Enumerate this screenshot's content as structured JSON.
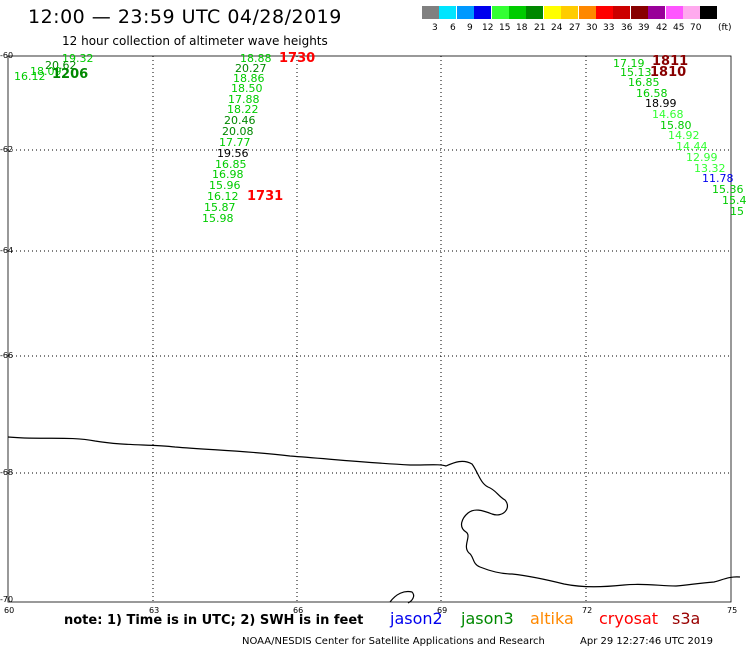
{
  "header": {
    "title": "12:00 — 23:59 UTC 04/28/2019",
    "subtitle": "12 hour collection of altimeter wave heights"
  },
  "legend": {
    "unit": "(ft)",
    "steps": [
      {
        "label": "3",
        "color": "#808080"
      },
      {
        "label": "6",
        "color": "#00e5ff"
      },
      {
        "label": "9",
        "color": "#0099ff"
      },
      {
        "label": "12",
        "color": "#0000ee"
      },
      {
        "label": "15",
        "color": "#33ff33"
      },
      {
        "label": "18",
        "color": "#00cc00"
      },
      {
        "label": "21",
        "color": "#008800"
      },
      {
        "label": "24",
        "color": "#ffff00"
      },
      {
        "label": "27",
        "color": "#ffcc00"
      },
      {
        "label": "30",
        "color": "#ff8800"
      },
      {
        "label": "33",
        "color": "#ff0000"
      },
      {
        "label": "36",
        "color": "#cc0000"
      },
      {
        "label": "39",
        "color": "#880000"
      },
      {
        "label": "42",
        "color": "#990099"
      },
      {
        "label": "45",
        "color": "#ff55ff"
      },
      {
        "label": "70",
        "color": "#ffaaee"
      },
      {
        "label": "",
        "color": "#000000"
      }
    ]
  },
  "axes": {
    "lat_ticks": [
      "-60",
      "-62",
      "-64",
      "-66",
      "-68",
      "-70"
    ],
    "lon_ticks": [
      "60",
      "63",
      "66",
      "69",
      "72",
      "75"
    ]
  },
  "passes": [
    {
      "label": "1206",
      "color": "#008800"
    },
    {
      "label": "1730",
      "color": "#ff0000"
    },
    {
      "label": "1731",
      "color": "#ff0000"
    },
    {
      "label": "1811",
      "color": "#880000"
    },
    {
      "label": "1810",
      "color": "#880000"
    }
  ],
  "tracks": {
    "track_a": [
      {
        "v": "19.32",
        "color": "#00cc00"
      },
      {
        "v": "20.62",
        "color": "#008800"
      },
      {
        "v": "18.09",
        "color": "#00cc00"
      },
      {
        "v": "16.12",
        "color": "#00cc00"
      }
    ],
    "track_b": [
      {
        "v": "18.88",
        "color": "#00cc00"
      },
      {
        "v": "20.27",
        "color": "#008800"
      },
      {
        "v": "18.86",
        "color": "#00cc00"
      },
      {
        "v": "18.50",
        "color": "#00cc00"
      },
      {
        "v": "17.88",
        "color": "#00cc00"
      },
      {
        "v": "18.22",
        "color": "#00cc00"
      },
      {
        "v": "20.46",
        "color": "#008800"
      },
      {
        "v": "20.08",
        "color": "#008800"
      },
      {
        "v": "17.77",
        "color": "#00cc00"
      },
      {
        "v": "19.56",
        "color": "#000000"
      },
      {
        "v": "16.85",
        "color": "#00cc00"
      },
      {
        "v": "16.98",
        "color": "#00cc00"
      },
      {
        "v": "15.96",
        "color": "#00cc00"
      },
      {
        "v": "16.12",
        "color": "#00cc00"
      },
      {
        "v": "15.87",
        "color": "#00cc00"
      },
      {
        "v": "15.98",
        "color": "#00cc00"
      }
    ],
    "track_c": [
      {
        "v": "17.19",
        "color": "#00cc00"
      },
      {
        "v": "15.13",
        "color": "#00cc00"
      },
      {
        "v": "16.85",
        "color": "#00cc00"
      },
      {
        "v": "16.58",
        "color": "#00cc00"
      },
      {
        "v": "18.99",
        "color": "#000000"
      },
      {
        "v": "14.68",
        "color": "#33ff33"
      },
      {
        "v": "15.80",
        "color": "#00cc00"
      },
      {
        "v": "14.92",
        "color": "#33ff33"
      },
      {
        "v": "14.44",
        "color": "#33ff33"
      },
      {
        "v": "12.99",
        "color": "#33ff33"
      },
      {
        "v": "13.32",
        "color": "#33ff33"
      },
      {
        "v": "11.78",
        "color": "#0000ee"
      },
      {
        "v": "15.36",
        "color": "#00cc00"
      },
      {
        "v": "15.4",
        "color": "#00cc00"
      },
      {
        "v": "15",
        "color": "#00cc00"
      }
    ]
  },
  "footer": {
    "note": "note: 1) Time is in UTC; 2) SWH is in feet",
    "satellites": [
      {
        "name": "jason2",
        "color": "#0000ee"
      },
      {
        "name": "jason3",
        "color": "#008800"
      },
      {
        "name": "altika",
        "color": "#ff8800"
      },
      {
        "name": "cryosat",
        "color": "#ff0000"
      },
      {
        "name": "s3a",
        "color": "#990000"
      }
    ],
    "credit": "NOAA/NESDIS Center for Satellite Applications and Research",
    "timestamp": "Apr 29 12:27:46 UTC 2019"
  }
}
